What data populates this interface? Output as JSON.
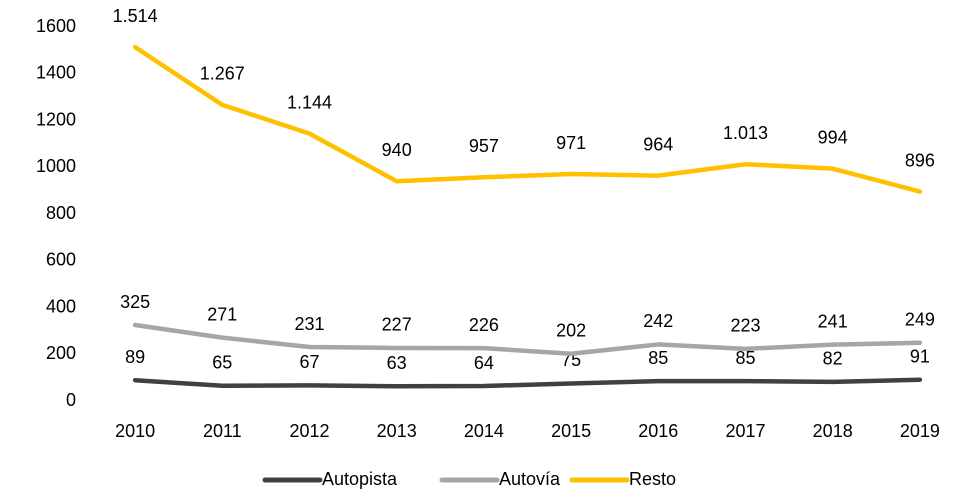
{
  "chart_data": {
    "type": "line",
    "categories": [
      "2010",
      "2011",
      "2012",
      "2013",
      "2014",
      "2015",
      "2016",
      "2017",
      "2018",
      "2019"
    ],
    "series": [
      {
        "name": "Autopista",
        "color": "#404040",
        "values": [
          89,
          65,
          67,
          63,
          64,
          75,
          85,
          85,
          82,
          91
        ]
      },
      {
        "name": "Autovía",
        "color": "#a6a6a6",
        "values": [
          325,
          271,
          231,
          227,
          226,
          202,
          242,
          223,
          241,
          249
        ]
      },
      {
        "name": "Resto",
        "color": "#ffc000",
        "values": [
          1514,
          1267,
          1144,
          940,
          957,
          971,
          964,
          1013,
          994,
          896
        ],
        "value_labels": [
          "1.514",
          "1.267",
          "1.144",
          "940",
          "957",
          "971",
          "964",
          "1.013",
          "994",
          "896"
        ]
      }
    ],
    "ylim": [
      0,
      1600
    ],
    "yticks": [
      0,
      200,
      400,
      600,
      800,
      1000,
      1200,
      1400,
      1600
    ],
    "grid": false,
    "legend": "bottom"
  }
}
